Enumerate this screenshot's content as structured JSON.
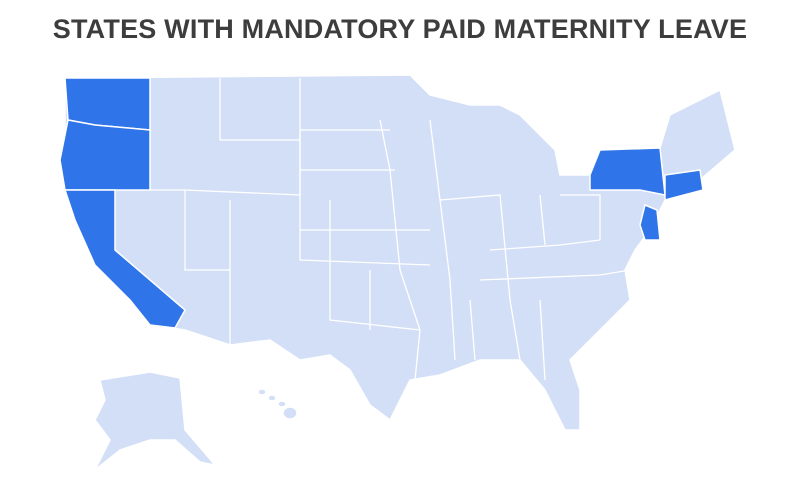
{
  "title": "STATES WITH MANDATORY PAID MATERNITY LEAVE"
}
